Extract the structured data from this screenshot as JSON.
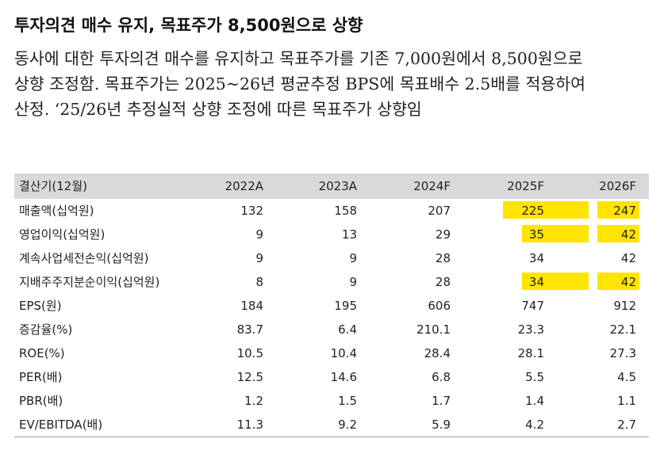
{
  "title": "투자의견 매수 유지, 목표주가 8,500원으로 상향",
  "paragraph": [
    "동사에 대한 투자의견 매수를 유지하고 목표주가를 기존 7,000원에서 8,500원으로",
    "상향 조정함. 목표주가는 2025~26년 평균추정 BPS에 목표배수 2.5배를 적용하여",
    "산정. ‘25/26년 추정실적 상향 조정에 따른 목표주가 상향임"
  ],
  "table": {
    "headers": [
      "결산기(12월)",
      "2022A",
      "2023A",
      "2024F",
      "2025F",
      "2026F"
    ],
    "rows": [
      {
        "label": "매출액(십억원)",
        "values": [
          "132",
          "158",
          "207",
          "225",
          "247"
        ],
        "highlight": [
          false,
          false,
          false,
          true,
          true
        ]
      },
      {
        "label": "영업이익(십억원)",
        "values": [
          "9",
          "13",
          "29",
          "35",
          "42"
        ],
        "highlight": [
          false,
          false,
          false,
          true,
          true
        ]
      },
      {
        "label": "계속사업세전손익(십억원)",
        "values": [
          "9",
          "9",
          "28",
          "34",
          "42"
        ],
        "highlight": [
          false,
          false,
          false,
          false,
          false
        ]
      },
      {
        "label": "지배주주지분순이익(십억원)",
        "values": [
          "8",
          "9",
          "28",
          "34",
          "42"
        ],
        "highlight": [
          false,
          false,
          false,
          true,
          true
        ]
      },
      {
        "label": "EPS(원)",
        "values": [
          "184",
          "195",
          "606",
          "747",
          "912"
        ],
        "highlight": [
          false,
          false,
          false,
          false,
          false
        ]
      },
      {
        "label": "증감율(%)",
        "values": [
          "83.7",
          "6.4",
          "210.1",
          "23.3",
          "22.1"
        ],
        "highlight": [
          false,
          false,
          false,
          false,
          false
        ]
      },
      {
        "label": "ROE(%)",
        "values": [
          "10.5",
          "10.4",
          "28.4",
          "28.1",
          "27.3"
        ],
        "highlight": [
          false,
          false,
          false,
          false,
          false
        ]
      },
      {
        "label": "PER(배)",
        "values": [
          "12.5",
          "14.6",
          "6.8",
          "5.5",
          "4.5"
        ],
        "highlight": [
          false,
          false,
          false,
          false,
          false
        ]
      },
      {
        "label": "PBR(배)",
        "values": [
          "1.2",
          "1.5",
          "1.7",
          "1.4",
          "1.1"
        ],
        "highlight": [
          false,
          false,
          false,
          false,
          false
        ]
      },
      {
        "label": "EV/EBITDA(배)",
        "values": [
          "11.3",
          "9.2",
          "5.9",
          "4.2",
          "2.7"
        ],
        "highlight": [
          false,
          false,
          false,
          false,
          false
        ]
      }
    ]
  },
  "colors": {
    "highlight": "#ffe400",
    "header_bg": "#d9d9d9"
  }
}
